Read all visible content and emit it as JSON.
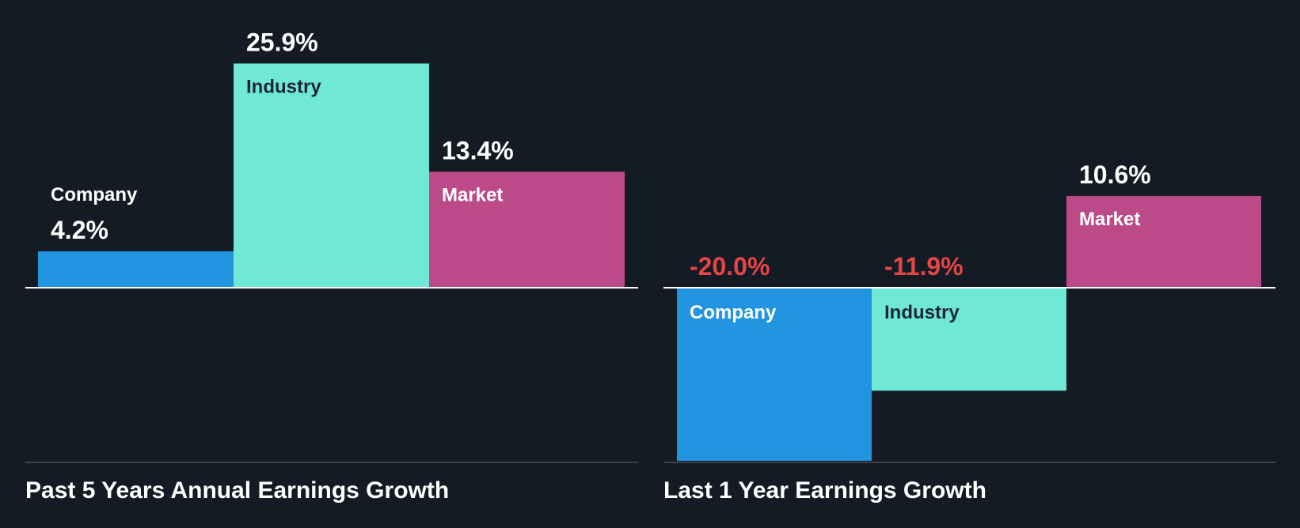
{
  "colors": {
    "background": "#151b24",
    "company": "#2394e0",
    "industry": "#6fe8d6",
    "market": "#bd4a88",
    "negative_label": "#e64545",
    "positive_label": "#ffffff",
    "axis": "#ffffff",
    "baseline": "#3d4450"
  },
  "chart_data": [
    {
      "type": "bar",
      "title": "Past 5 Years Annual Earnings Growth",
      "categories": [
        "Company",
        "Industry",
        "Market"
      ],
      "values": [
        4.2,
        25.9,
        13.4
      ],
      "value_labels": [
        "4.2%",
        "25.9%",
        "13.4%"
      ],
      "unit": "%",
      "ylim": [
        -20.0,
        25.9
      ],
      "grid": false,
      "legend": "none"
    },
    {
      "type": "bar",
      "title": "Last 1 Year Earnings Growth",
      "categories": [
        "Company",
        "Industry",
        "Market"
      ],
      "values": [
        -20.0,
        -11.9,
        10.6
      ],
      "value_labels": [
        "-20.0%",
        "-11.9%",
        "10.6%"
      ],
      "unit": "%",
      "ylim": [
        -20.0,
        25.9
      ],
      "grid": false,
      "legend": "none"
    }
  ]
}
